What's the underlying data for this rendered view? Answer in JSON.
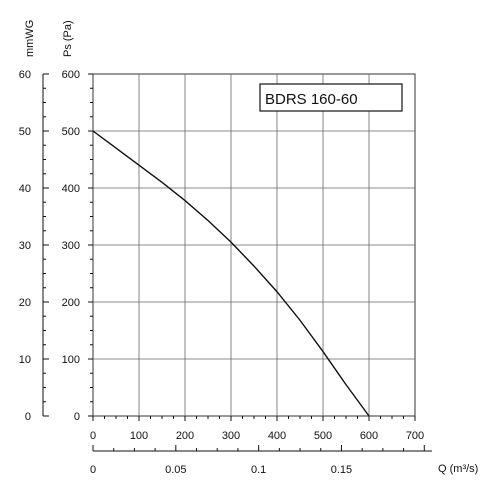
{
  "chart_data": {
    "type": "line",
    "title": "BDRS 160-60",
    "xlabel": "",
    "ylabel": "Ps (Pa)",
    "xlim": [
      0,
      700
    ],
    "ylim": [
      0,
      600
    ],
    "x_ticks": [
      0,
      100,
      200,
      300,
      400,
      500,
      600,
      700
    ],
    "y_ticks": [
      0,
      100,
      200,
      300,
      400,
      500,
      600
    ],
    "grid": true,
    "secondary_y": {
      "label": "mmWG",
      "ylim": [
        0,
        60
      ],
      "ticks": [
        0,
        10,
        20,
        30,
        40,
        50,
        60
      ]
    },
    "secondary_x": {
      "label": "Q (m³/s)",
      "xlim": [
        0,
        0.1944
      ],
      "ticks": [
        0,
        0.05,
        0.1,
        0.15
      ]
    },
    "series": [
      {
        "name": "",
        "x": [
          0,
          50,
          100,
          150,
          200,
          250,
          300,
          350,
          400,
          450,
          500,
          550,
          600
        ],
        "y": [
          500,
          470,
          440,
          410,
          378,
          343,
          305,
          263,
          218,
          168,
          113,
          55,
          0
        ]
      }
    ]
  }
}
